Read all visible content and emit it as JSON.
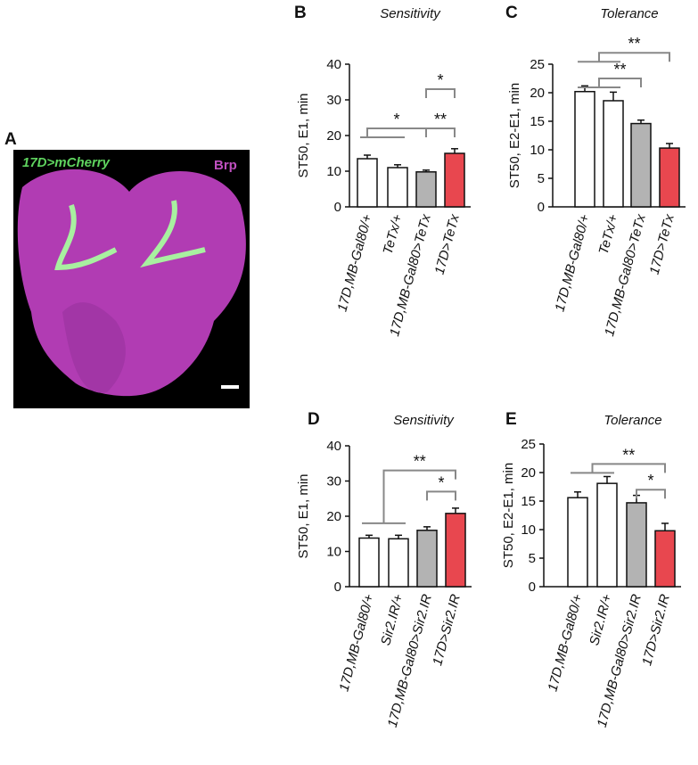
{
  "panel_a": {
    "label": "A",
    "green_label": "17D>mCherry",
    "magenta_label": "Brp"
  },
  "chart_data": [
    {
      "type": "bar",
      "panel": "B",
      "title": "Sensitivity",
      "ylabel": "ST50, E1, min",
      "categories": [
        "17D,MB-Gal80/+",
        "TeTx/+",
        "17D,MB-Gal80>TeTx",
        "17D>TeTx"
      ],
      "values": [
        13.5,
        11,
        9.8,
        15
      ],
      "errors": [
        1,
        0.8,
        0.5,
        1.3
      ],
      "colors": [
        "#ffffff",
        "#ffffff",
        "#b3b3b3",
        "#e8474f"
      ],
      "ylim": [
        0,
        40
      ],
      "yticks": [
        0,
        10,
        20,
        30,
        40
      ],
      "significance": [
        "*",
        "*",
        "**"
      ]
    },
    {
      "type": "bar",
      "panel": "C",
      "title": "Tolerance",
      "ylabel": "ST50, E2-E1, min",
      "categories": [
        "17D,MB-Gal80/+",
        "TeTx/+",
        "17D,MB-Gal80>TeTx",
        "17D>TeTx"
      ],
      "values": [
        20.2,
        18.6,
        14.6,
        10.3
      ],
      "errors": [
        1,
        1.5,
        0.6,
        0.8
      ],
      "colors": [
        "#ffffff",
        "#ffffff",
        "#b3b3b3",
        "#e8474f"
      ],
      "ylim": [
        0,
        25
      ],
      "yticks": [
        0,
        5,
        10,
        15,
        20,
        25
      ],
      "significance": [
        "**",
        "**"
      ]
    },
    {
      "type": "bar",
      "panel": "D",
      "title": "Sensitivity",
      "ylabel": "ST50, E1, min",
      "categories": [
        "17D,MB-Gal80/+",
        "Sir2.IR/+",
        "17D,MB-Gal80>Sir2.IR",
        "17D>Sir2.IR"
      ],
      "values": [
        13.8,
        13.6,
        16,
        20.8
      ],
      "errors": [
        0.8,
        1,
        1,
        1.5
      ],
      "colors": [
        "#ffffff",
        "#ffffff",
        "#b3b3b3",
        "#e8474f"
      ],
      "ylim": [
        0,
        40
      ],
      "yticks": [
        0,
        10,
        20,
        30,
        40
      ],
      "significance": [
        "**",
        "*"
      ]
    },
    {
      "type": "bar",
      "panel": "E",
      "title": "Tolerance",
      "ylabel": "ST50, E2-E1, min",
      "categories": [
        "17D,MB-Gal80/+",
        "Sir2.IR/+",
        "17D,MB-Gal80>Sir2.IR",
        "17D>Sir2.IR"
      ],
      "values": [
        15.6,
        18.1,
        14.7,
        9.8
      ],
      "errors": [
        1,
        1.2,
        1.3,
        1.3
      ],
      "colors": [
        "#ffffff",
        "#ffffff",
        "#b3b3b3",
        "#e8474f"
      ],
      "ylim": [
        0,
        25
      ],
      "yticks": [
        0,
        5,
        10,
        15,
        20,
        25
      ],
      "significance": [
        "**",
        "*"
      ]
    }
  ]
}
